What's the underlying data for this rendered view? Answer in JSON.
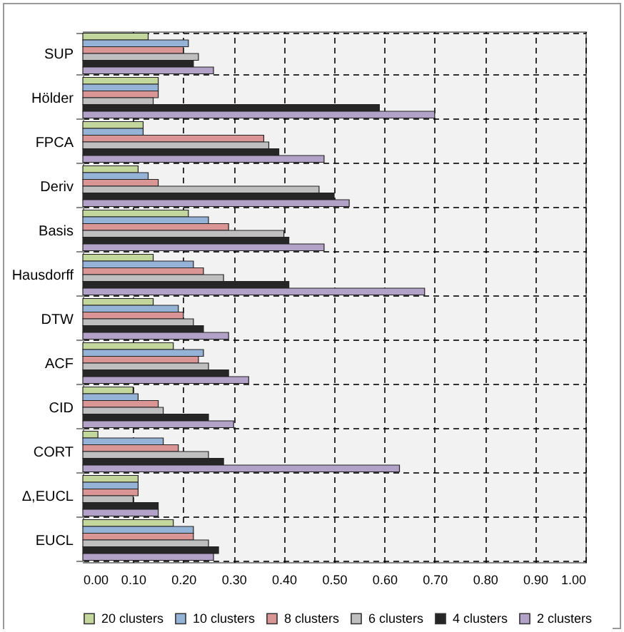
{
  "chart_data": {
    "type": "bar",
    "orientation": "horizontal",
    "categories": [
      "SUP",
      "Hölder",
      "FPCA",
      "Deriv",
      "Basis",
      "Hausdorff",
      "DTW",
      "ACF",
      "CID",
      "CORT",
      "Δ,EUCL",
      "EUCL"
    ],
    "series": [
      {
        "name": "20 clusters",
        "color": "#c3d69b",
        "values": [
          0.13,
          0.15,
          0.12,
          0.11,
          0.21,
          0.14,
          0.14,
          0.18,
          0.1,
          0.03,
          0.11,
          0.18
        ]
      },
      {
        "name": "10 clusters",
        "color": "#95b3d7",
        "values": [
          0.21,
          0.15,
          0.12,
          0.13,
          0.25,
          0.22,
          0.19,
          0.24,
          0.11,
          0.16,
          0.11,
          0.22
        ]
      },
      {
        "name": "8 clusters",
        "color": "#d99694",
        "values": [
          0.2,
          0.15,
          0.36,
          0.15,
          0.29,
          0.24,
          0.2,
          0.23,
          0.15,
          0.19,
          0.11,
          0.22
        ]
      },
      {
        "name": "6 clusters",
        "color": "#bfbfbf",
        "values": [
          0.23,
          0.14,
          0.37,
          0.47,
          0.4,
          0.28,
          0.22,
          0.25,
          0.16,
          0.25,
          0.1,
          0.25
        ]
      },
      {
        "name": "4 clusters",
        "color": "#262626",
        "values": [
          0.22,
          0.59,
          0.39,
          0.5,
          0.41,
          0.41,
          0.24,
          0.29,
          0.25,
          0.28,
          0.15,
          0.27
        ]
      },
      {
        "name": "2 clusters",
        "color": "#b3a2c7",
        "values": [
          0.26,
          0.7,
          0.48,
          0.53,
          0.48,
          0.68,
          0.29,
          0.33,
          0.3,
          0.63,
          0.15,
          0.26
        ]
      }
    ],
    "xlim": [
      0,
      1
    ],
    "xticks": [
      {
        "value": 0,
        "label": "0.00"
      },
      {
        "value": 0.1,
        "label": "0.10"
      },
      {
        "value": 0.2,
        "label": "0.20"
      },
      {
        "value": 0.3,
        "label": "0.30"
      },
      {
        "value": 0.4,
        "label": "0.40"
      },
      {
        "value": 0.5,
        "label": "0.50"
      },
      {
        "value": 0.6,
        "label": "0.60"
      },
      {
        "value": 0.7,
        "label": "0.70"
      },
      {
        "value": 0.8,
        "label": "0.80"
      },
      {
        "value": 0.9,
        "label": "0.90"
      },
      {
        "value": 1,
        "label": "1.00"
      }
    ],
    "grid": true,
    "legend": "bottom"
  }
}
